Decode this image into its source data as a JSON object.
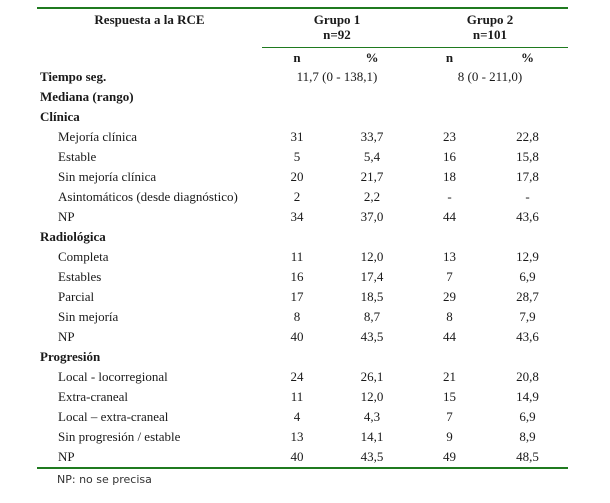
{
  "colors": {
    "rule_green": "#1f7a1f",
    "text": "#1a1a1a",
    "background": "#ffffff"
  },
  "table": {
    "corner_header": "Respuesta a la RCE",
    "group1": {
      "label": "Grupo 1",
      "size": "n=92"
    },
    "group2": {
      "label": "Grupo 2",
      "size": "n=101"
    },
    "subheaders": {
      "n1": "n",
      "p1": "%",
      "n2": "n",
      "p2": "%"
    },
    "rows": [
      {
        "type": "span",
        "label": "Tiempo seg.",
        "g1": "11,7 (0 - 138,1)",
        "g2": "8 (0 - 211,0)"
      },
      {
        "type": "span",
        "label": "Mediana (rango)",
        "g1": "",
        "g2": ""
      },
      {
        "type": "section",
        "label": "Clínica"
      },
      {
        "type": "data",
        "label": "Mejoría clínica",
        "values": [
          "31",
          "33,7",
          "23",
          "22,8"
        ]
      },
      {
        "type": "data",
        "label": "Estable",
        "values": [
          "5",
          "5,4",
          "16",
          "15,8"
        ]
      },
      {
        "type": "data",
        "label": "Sin mejoría clínica",
        "values": [
          "20",
          "21,7",
          "18",
          "17,8"
        ]
      },
      {
        "type": "data",
        "label": "Asintomáticos (desde diagnóstico)",
        "values": [
          "2",
          "2,2",
          "-",
          "-"
        ]
      },
      {
        "type": "data",
        "label": "NP",
        "values": [
          "34",
          "37,0",
          "44",
          "43,6"
        ]
      },
      {
        "type": "section",
        "label": "Radiológica"
      },
      {
        "type": "data",
        "label": "Completa",
        "values": [
          "11",
          "12,0",
          "13",
          "12,9"
        ]
      },
      {
        "type": "data",
        "label": "Estables",
        "values": [
          "16",
          "17,4",
          "7",
          "6,9"
        ]
      },
      {
        "type": "data",
        "label": "Parcial",
        "values": [
          "17",
          "18,5",
          "29",
          "28,7"
        ]
      },
      {
        "type": "data",
        "label": "Sin mejoría",
        "values": [
          "8",
          "8,7",
          "8",
          "7,9"
        ]
      },
      {
        "type": "data",
        "label": "NP",
        "values": [
          "40",
          "43,5",
          "44",
          "43,6"
        ]
      },
      {
        "type": "section",
        "label": "Progresión"
      },
      {
        "type": "data",
        "label": "Local - locorregional",
        "values": [
          "24",
          "26,1",
          "21",
          "20,8"
        ]
      },
      {
        "type": "data",
        "label": "Extra-craneal",
        "values": [
          "11",
          "12,0",
          "15",
          "14,9"
        ]
      },
      {
        "type": "data",
        "label": "Local – extra-craneal",
        "values": [
          "4",
          "4,3",
          "7",
          "6,9"
        ]
      },
      {
        "type": "data",
        "label": "Sin progresión / estable",
        "values": [
          "13",
          "14,1",
          "9",
          "8,9"
        ]
      },
      {
        "type": "data",
        "label": "NP",
        "values": [
          "40",
          "43,5",
          "49",
          "48,5"
        ]
      }
    ]
  },
  "footnote": "NP: no se precisa"
}
